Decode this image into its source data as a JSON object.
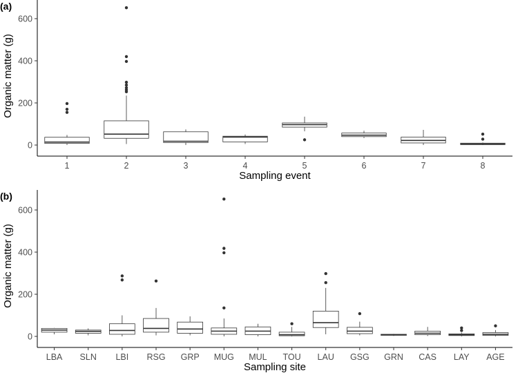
{
  "chart_data": [
    {
      "type": "boxplot",
      "panel_label": "(a)",
      "xlabel": "Sampling event",
      "ylabel": "Organic matter (g)",
      "ylim": [
        -20,
        660
      ],
      "yticks": [
        0,
        200,
        400,
        600
      ],
      "categories": [
        "1",
        "2",
        "3",
        "4",
        "5",
        "6",
        "7",
        "8"
      ],
      "boxes": [
        {
          "min": 0,
          "q1": 8,
          "median": 14,
          "q3": 37,
          "max": 48,
          "outliers": [
            155,
            170,
            197
          ]
        },
        {
          "min": 5,
          "q1": 32,
          "median": 52,
          "q3": 115,
          "max": 235,
          "outliers": [
            253,
            262,
            272,
            285,
            298,
            397,
            420,
            652
          ]
        },
        {
          "min": 0,
          "q1": 12,
          "median": 18,
          "q3": 63,
          "max": 74,
          "outliers": []
        },
        {
          "min": 5,
          "q1": 15,
          "median": 38,
          "q3": 42,
          "max": 50,
          "outliers": []
        },
        {
          "min": 65,
          "q1": 85,
          "median": 97,
          "q3": 105,
          "max": 135,
          "outliers": [
            25
          ]
        },
        {
          "min": 33,
          "q1": 40,
          "median": 47,
          "q3": 57,
          "max": 68,
          "outliers": []
        },
        {
          "min": 0,
          "q1": 10,
          "median": 22,
          "q3": 38,
          "max": 72,
          "outliers": []
        },
        {
          "min": 0,
          "q1": 2,
          "median": 5,
          "q3": 9,
          "max": 12,
          "outliers": [
            28,
            52
          ]
        }
      ]
    },
    {
      "type": "boxplot",
      "panel_label": "(b)",
      "xlabel": "Sampling site",
      "ylabel": "Organic matter (g)",
      "ylim": [
        -20,
        660
      ],
      "yticks": [
        0,
        200,
        400,
        600
      ],
      "categories": [
        "LBA",
        "SLN",
        "LBI",
        "RSG",
        "GRP",
        "MUG",
        "MUL",
        "TOU",
        "LAU",
        "GSG",
        "GRN",
        "CAS",
        "LAY",
        "AGE"
      ],
      "boxes": [
        {
          "min": 10,
          "q1": 20,
          "median": 30,
          "q3": 38,
          "max": 40,
          "outliers": []
        },
        {
          "min": 5,
          "q1": 15,
          "median": 24,
          "q3": 30,
          "max": 38,
          "outliers": []
        },
        {
          "min": 0,
          "q1": 10,
          "median": 28,
          "q3": 60,
          "max": 100,
          "outliers": [
            268,
            287
          ]
        },
        {
          "min": 5,
          "q1": 20,
          "median": 38,
          "q3": 85,
          "max": 135,
          "outliers": [
            263
          ]
        },
        {
          "min": 5,
          "q1": 15,
          "median": 35,
          "q3": 68,
          "max": 95,
          "outliers": []
        },
        {
          "min": 0,
          "q1": 10,
          "median": 25,
          "q3": 40,
          "max": 85,
          "outliers": [
            135,
            397,
            418,
            652
          ]
        },
        {
          "min": 0,
          "q1": 8,
          "median": 25,
          "q3": 45,
          "max": 60,
          "outliers": []
        },
        {
          "min": 0,
          "q1": 3,
          "median": 8,
          "q3": 20,
          "max": 45,
          "outliers": [
            60
          ]
        },
        {
          "min": 10,
          "q1": 42,
          "median": 65,
          "q3": 120,
          "max": 230,
          "outliers": [
            255,
            298
          ]
        },
        {
          "min": 5,
          "q1": 13,
          "median": 25,
          "q3": 43,
          "max": 70,
          "outliers": [
            108
          ]
        },
        {
          "min": 2,
          "q1": 5,
          "median": 8,
          "q3": 10,
          "max": 12,
          "outliers": []
        },
        {
          "min": 2,
          "q1": 8,
          "median": 15,
          "q3": 25,
          "max": 45,
          "outliers": []
        },
        {
          "min": 0,
          "q1": 4,
          "median": 8,
          "q3": 12,
          "max": 18,
          "outliers": [
            28,
            40
          ]
        },
        {
          "min": 0,
          "q1": 5,
          "median": 10,
          "q3": 18,
          "max": 30,
          "outliers": [
            50
          ]
        }
      ]
    }
  ]
}
